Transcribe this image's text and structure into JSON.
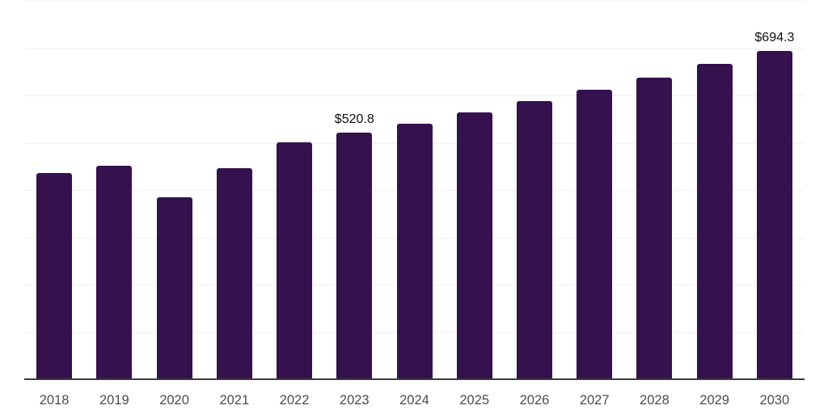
{
  "chart_data": {
    "type": "bar",
    "title": "",
    "xlabel": "",
    "ylabel": "",
    "categories": [
      "2018",
      "2019",
      "2020",
      "2021",
      "2022",
      "2023",
      "2024",
      "2025",
      "2026",
      "2027",
      "2028",
      "2029",
      "2030"
    ],
    "values": [
      436,
      451,
      384,
      447,
      501,
      520.8,
      541,
      564,
      588,
      612,
      638,
      667,
      694.3
    ],
    "data_labels": [
      "",
      "",
      "",
      "",
      "",
      "$520.8",
      "",
      "",
      "",
      "",
      "",
      "",
      "$694.3"
    ],
    "ylim": [
      0,
      800
    ],
    "grid_step": 100,
    "grid": "horizontal",
    "legend": "none",
    "y_tick_labels_visible": false,
    "colors": {
      "bar": "#35114E",
      "axis_line": "#3C3C3C",
      "gridline": "#F0F0F0",
      "tick_label": "#4D4D4D",
      "data_label": "#111111",
      "background": "#FFFFFF"
    }
  }
}
